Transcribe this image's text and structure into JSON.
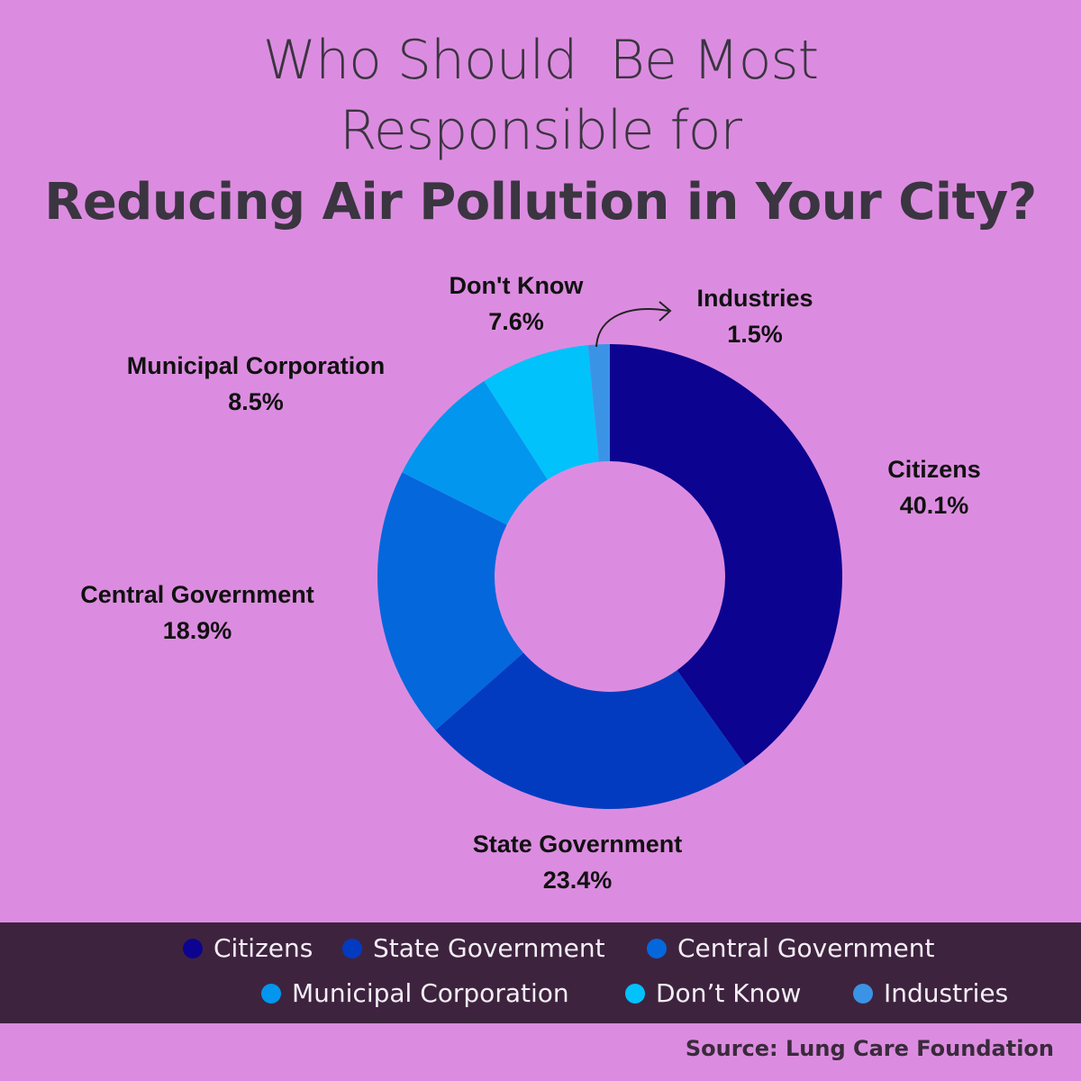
{
  "title": {
    "line1": "Who Should  Be Most",
    "line2": "Responsible for",
    "line3": "Reducing Air Pollution in Your City?"
  },
  "chart_data": {
    "type": "pie",
    "donut": true,
    "categories": [
      "Citizens",
      "State Government",
      "Central Government",
      "Municipal Corporation",
      "Don't Know",
      "Industries"
    ],
    "values": [
      40.1,
      23.4,
      18.9,
      8.5,
      7.6,
      1.5
    ],
    "value_labels": [
      "40.1%",
      "23.4%",
      "18.9%",
      "8.5%",
      "7.6%",
      "1.5%"
    ],
    "colors": [
      "#0c0490",
      "#033bc0",
      "#0467dc",
      "#0396ee",
      "#02c2fb",
      "#3b93e6"
    ],
    "legend_labels": [
      "Citizens",
      "State Government",
      "Central Government",
      "Municipal Corporation",
      "Don’t Know",
      "Industries"
    ],
    "legend_position": "bottom"
  },
  "footer": {
    "source": "Source: Lung Care Foundation"
  }
}
